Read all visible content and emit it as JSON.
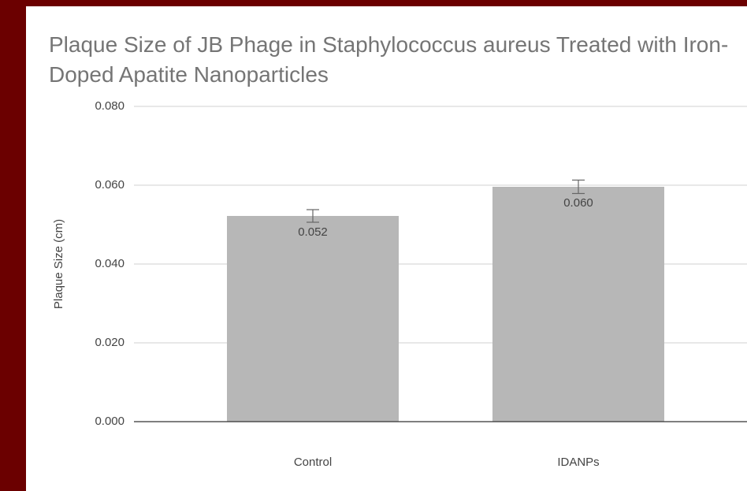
{
  "chart_data": {
    "type": "bar",
    "title": "Plaque Size of JB Phage in Staphylococcus aureus Treated with Iron-Doped Apatite Nanoparticles",
    "y_label": "Plaque Size (cm)",
    "categories": [
      "Control",
      "IDANPs"
    ],
    "values": [
      0.0522,
      0.0596
    ],
    "value_labels": [
      "0.052",
      "0.060"
    ],
    "errors": [
      0.0016,
      0.0017
    ],
    "color": "#b7b7b7",
    "ylim": [
      0,
      0.08
    ],
    "yticks": [
      {
        "value": 0,
        "label": "0.000"
      },
      {
        "value": 0.02,
        "label": "0.020"
      },
      {
        "value": 0.04,
        "label": "0.040"
      },
      {
        "value": 0.06,
        "label": "0.060"
      },
      {
        "value": 0.08,
        "label": "0.080"
      }
    ],
    "grid": true
  }
}
